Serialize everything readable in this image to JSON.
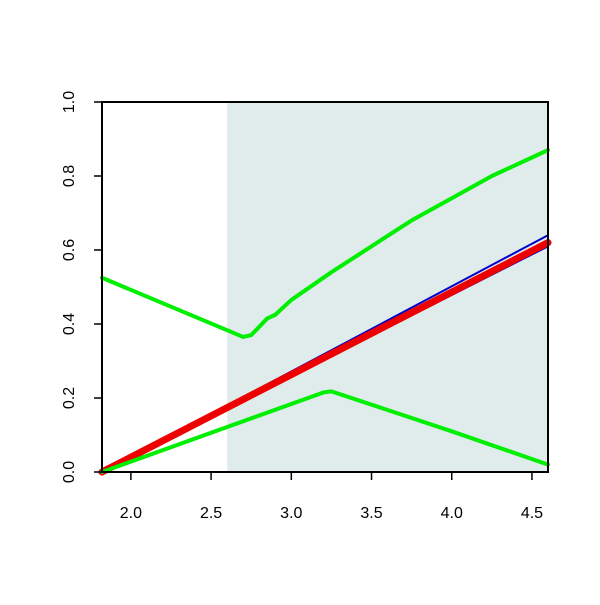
{
  "chart_data": {
    "type": "line",
    "xlim": [
      1.82,
      4.6
    ],
    "ylim": [
      0,
      1.0
    ],
    "xticks": [
      {
        "value": 2.0,
        "label": "2.0"
      },
      {
        "value": 2.5,
        "label": "2.5"
      },
      {
        "value": 3.0,
        "label": "3.0"
      },
      {
        "value": 3.5,
        "label": "3.5"
      },
      {
        "value": 4.0,
        "label": "4.0"
      },
      {
        "value": 4.5,
        "label": "4.5"
      }
    ],
    "yticks": [
      {
        "value": 0,
        "label": "0.0"
      },
      {
        "value": 0.2,
        "label": "0.2"
      },
      {
        "value": 0.4,
        "label": "0.4"
      },
      {
        "value": 0.6,
        "label": "0.6"
      },
      {
        "value": 0.8,
        "label": "0.8"
      },
      {
        "value": 1.0,
        "label": "1.0"
      }
    ],
    "shaded_region": {
      "xmin": 2.6,
      "color": "#dfeceb"
    },
    "series": [
      {
        "color": "#0000cc",
        "width": 2,
        "x": [
          1.82,
          4.6
        ],
        "values": [
          0,
          0.64
        ]
      },
      {
        "color": "#0000cc",
        "width": 2,
        "x": [
          1.82,
          4.6
        ],
        "values": [
          0,
          0.61
        ]
      },
      {
        "color": "#ee0000",
        "width": 7,
        "x": [
          1.82,
          4.6
        ],
        "values": [
          0,
          0.62
        ]
      },
      {
        "color": "#00ee00",
        "width": 4,
        "x": [
          1.82,
          2.7,
          2.75,
          2.85,
          2.9,
          3.0,
          3.25,
          3.5,
          3.75,
          4.0,
          4.25,
          4.5,
          4.6
        ],
        "values": [
          0.525,
          0.365,
          0.37,
          0.415,
          0.425,
          0.465,
          0.54,
          0.61,
          0.68,
          0.74,
          0.8,
          0.85,
          0.87
        ]
      },
      {
        "color": "#00ee00",
        "width": 4,
        "x": [
          1.82,
          3.2,
          3.25,
          4.0,
          4.6
        ],
        "values": [
          0,
          0.215,
          0.218,
          0.11,
          0.02
        ]
      }
    ]
  }
}
